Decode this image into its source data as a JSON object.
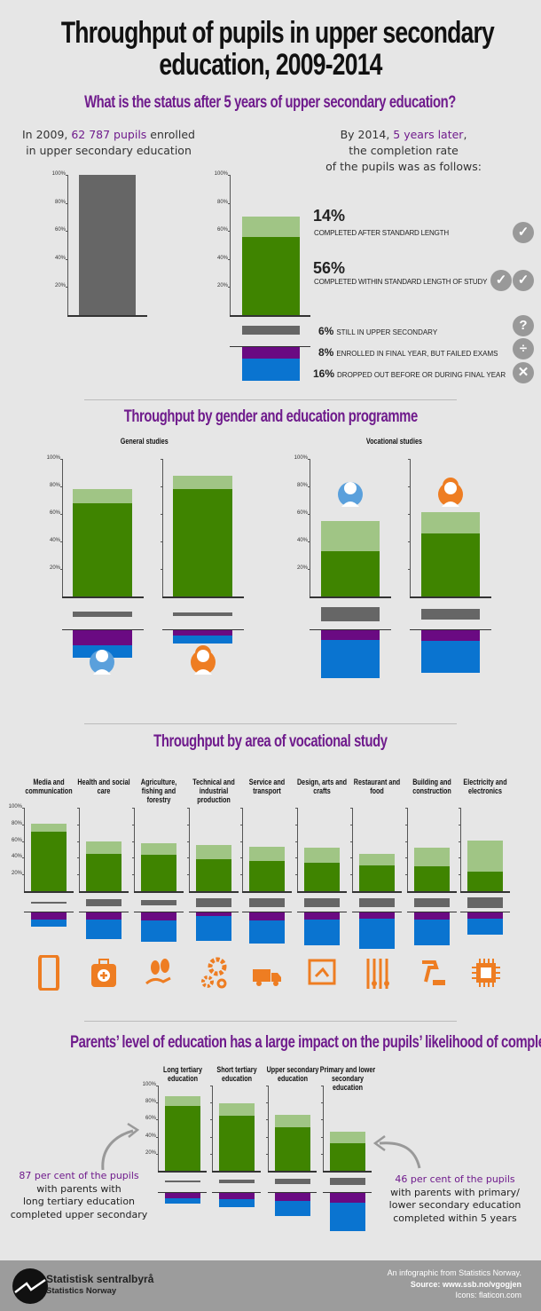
{
  "title_line1": "Throughput of pupils in upper secondary",
  "title_line2": "education, 2009-2014",
  "section1": {
    "heading": "What is the status after 5 years of upper secondary education?",
    "left_text": {
      "pre": "In 2009, ",
      "highlight": "62 787 pupils",
      "post": " enrolled",
      "line2": "in upper secondary education"
    },
    "right_text": {
      "pre": "By 2014, ",
      "highlight": "5 years later",
      "post": ",",
      "line2": "the completion rate",
      "line3": "of the pupils was as follows:"
    },
    "labels": [
      {
        "pct": "14%",
        "text": "COMPLETED AFTER STANDARD LENGTH",
        "icon": "check-icon"
      },
      {
        "pct": "56%",
        "text": "COMPLETED WITHIN STANDARD LENGTH OF STUDY",
        "icon": "double-check-icon"
      },
      {
        "pct": "6%",
        "text": "STILL IN UPPER SECONDARY",
        "icon": "question-icon"
      },
      {
        "pct": "8%",
        "text": "ENROLLED IN FINAL YEAR, BUT FAILED EXAMS",
        "icon": "divide-icon"
      },
      {
        "pct": "16%",
        "text": "DROPPED OUT BEFORE OR DURING FINAL YEAR",
        "icon": "x-icon"
      }
    ]
  },
  "section2": {
    "heading": "Throughput by gender and education programme",
    "general_label": "General studies",
    "vocational_label": "Vocational studies"
  },
  "section3": {
    "heading": "Throughput by area of vocational study"
  },
  "section4": {
    "heading": "Parents’ level of education has a large impact on the pupils’ likelihood of completing",
    "left_note": {
      "highlight": "87 per cent of the pupils",
      "l2": "with parents with",
      "l3": "long tertiary education",
      "l4": "completed upper secondary"
    },
    "right_note": {
      "highlight": "46 per cent of the pupils",
      "l2": "with parents with primary/",
      "l3": "lower secondary education",
      "l4": "completed within 5 years"
    }
  },
  "footer": {
    "logo_name": "Statistisk sentralbyrå",
    "logo_sub": "Statistics Norway",
    "line1": "An infographic from Statistics Norway.",
    "line2": "Source: www.ssb.no/vgogjen",
    "line3": "Icons: flaticon.com"
  },
  "colors": {
    "within": "#3f8400",
    "after": "#a0c585",
    "still": "#666666",
    "failed": "#6a0a82",
    "dropped": "#0a74d0",
    "enrolled": "#666666",
    "orange": "#ee7d22",
    "boy": "#5aa0dc",
    "girl": "#ee7d22"
  },
  "chart_data": [
    {
      "type": "bar",
      "name": "enrolled-2009",
      "ticks": [
        "100%",
        "80%",
        "60%",
        "40%",
        "20%"
      ],
      "ylim": [
        0,
        100
      ],
      "bars": [
        {
          "enrolled": 100
        }
      ]
    },
    {
      "type": "bar",
      "name": "status-2014",
      "ticks": [
        "100%",
        "80%",
        "60%",
        "40%",
        "20%"
      ],
      "ylim": [
        0,
        100
      ],
      "bars": [
        {
          "within": 56,
          "after": 14,
          "still": 6,
          "failed": 8,
          "dropped": 16
        }
      ]
    },
    {
      "type": "bar",
      "name": "general-studies",
      "ticks": [
        "100%",
        "80%",
        "60%",
        "40%",
        "20%"
      ],
      "ylim": [
        0,
        100
      ],
      "bars": [
        {
          "group": "boys",
          "within": 68,
          "after": 10,
          "still": 4,
          "failed": 11,
          "dropped": 9
        },
        {
          "group": "girls",
          "within": 78,
          "after": 10,
          "still": 2,
          "failed": 4,
          "dropped": 6
        }
      ]
    },
    {
      "type": "bar",
      "name": "vocational-studies",
      "ticks": [
        "100%",
        "80%",
        "60%",
        "40%",
        "20%"
      ],
      "ylim": [
        0,
        100
      ],
      "bars": [
        {
          "group": "boys",
          "within": 33,
          "after": 22,
          "still": 10,
          "failed": 7,
          "dropped": 28
        },
        {
          "group": "girls",
          "within": 46,
          "after": 15,
          "still": 8,
          "failed": 8,
          "dropped": 23
        }
      ]
    },
    {
      "type": "bar",
      "name": "vocational-areas",
      "ticks": [
        "100%",
        "80%",
        "60%",
        "40%",
        "20%"
      ],
      "ylim": [
        0,
        100
      ],
      "bars": [
        {
          "label": "Media and communication",
          "icon": "tablet-icon",
          "within": 71,
          "after": 10,
          "still": 1,
          "failed": 8,
          "dropped": 9
        },
        {
          "label": "Health and social care",
          "icon": "medical-kit-icon",
          "within": 45,
          "after": 15,
          "still": 8,
          "failed": 9,
          "dropped": 23
        },
        {
          "label": "Agriculture, fishing and forestry",
          "icon": "plant-hand-icon",
          "within": 44,
          "after": 13,
          "still": 7,
          "failed": 10,
          "dropped": 25
        },
        {
          "label": "Technical and industrial production",
          "icon": "gears-icon",
          "within": 38,
          "after": 17,
          "still": 11,
          "failed": 4,
          "dropped": 30
        },
        {
          "label": "Service and transport",
          "icon": "truck-icon",
          "within": 36,
          "after": 17,
          "still": 10,
          "failed": 10,
          "dropped": 27
        },
        {
          "label": "Design, arts and crafts",
          "icon": "easel-icon",
          "within": 34,
          "after": 18,
          "still": 10,
          "failed": 9,
          "dropped": 30
        },
        {
          "label": "Restaurant and food",
          "icon": "kitchen-utensils-icon",
          "within": 31,
          "after": 14,
          "still": 10,
          "failed": 7,
          "dropped": 37
        },
        {
          "label": "Building and construction",
          "icon": "hammer-bricks-icon",
          "within": 30,
          "after": 22,
          "still": 10,
          "failed": 8,
          "dropped": 31
        },
        {
          "label": "Electricity and electronics",
          "icon": "chip-icon",
          "within": 23,
          "after": 38,
          "still": 12,
          "failed": 7,
          "dropped": 20
        }
      ]
    },
    {
      "type": "bar",
      "name": "parents-education",
      "ticks": [
        "100%",
        "80%",
        "60%",
        "40%",
        "20%"
      ],
      "ylim": [
        0,
        100
      ],
      "bars": [
        {
          "label": "Long tertiary education",
          "within": 76,
          "after": 11,
          "still": 3,
          "failed": 6,
          "dropped": 6
        },
        {
          "label": "Short tertiary education",
          "within": 65,
          "after": 14,
          "still": 4,
          "failed": 7,
          "dropped": 10
        },
        {
          "label": "Upper secondary education",
          "within": 51,
          "after": 15,
          "still": 7,
          "failed": 9,
          "dropped": 18
        },
        {
          "label": "Primary and lower secondary education",
          "within": 32,
          "after": 14,
          "still": 9,
          "failed": 11,
          "dropped": 34
        }
      ]
    }
  ]
}
